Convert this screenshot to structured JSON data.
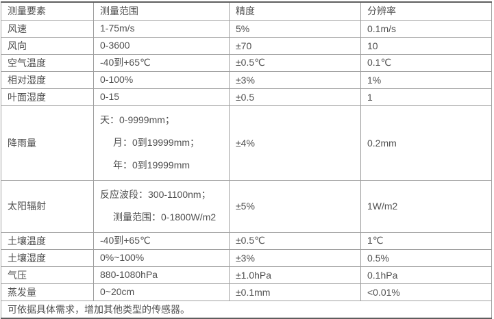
{
  "table": {
    "headers": [
      {
        "label": "测量要素"
      },
      {
        "label": "测量范围"
      },
      {
        "label": "精度"
      },
      {
        "label": "分辨率"
      }
    ],
    "rows": [
      {
        "element": "风速",
        "range": [
          "1-75m/s"
        ],
        "accuracy": "5%",
        "resolution": "0.1m/s"
      },
      {
        "element": "风向",
        "range": [
          "0-3600"
        ],
        "accuracy": "±70",
        "resolution": "10"
      },
      {
        "element": "空气温度",
        "range": [
          "-40到+65℃"
        ],
        "accuracy": "±0.5℃",
        "resolution": "0.1℃"
      },
      {
        "element": "相对湿度",
        "range": [
          "0-100%"
        ],
        "accuracy": "±3%",
        "resolution": "1%"
      },
      {
        "element": "叶面湿度",
        "range": [
          "0-15"
        ],
        "accuracy": "±0.5",
        "resolution": "1"
      },
      {
        "element": "降雨量",
        "range": [
          "天：0-9999mm；",
          "月：0到19999mm；",
          "年：0到19999mm"
        ],
        "accuracy": "±4%",
        "resolution": "0.2mm"
      },
      {
        "element": "太阳辐射",
        "range": [
          "反应波段：300-1100nm；",
          "测量范围：0-1800W/m2"
        ],
        "accuracy": "±5%",
        "resolution": "1W/m2"
      },
      {
        "element": "土壤温度",
        "range": [
          "-40到+65℃"
        ],
        "accuracy": "±0.5℃",
        "resolution": "1℃"
      },
      {
        "element": "土壤湿度",
        "range": [
          "0%~100%"
        ],
        "accuracy": "±3%",
        "resolution": "0.5%"
      },
      {
        "element": "气压",
        "range": [
          "880-1080hPa"
        ],
        "accuracy": "±1.0hPa",
        "resolution": "0.1hPa"
      },
      {
        "element": "蒸发量",
        "range": [
          "0~20cm"
        ],
        "accuracy": "±0.1mm",
        "resolution": "<0.01%"
      }
    ],
    "footer_note": "可依据具体需求，增加其他类型的传感器。"
  },
  "colors": {
    "text": "#4f4f4f",
    "inner_border": "#9f9f9f",
    "outer_border": "#5e5e5e",
    "background": "#ffffff"
  }
}
